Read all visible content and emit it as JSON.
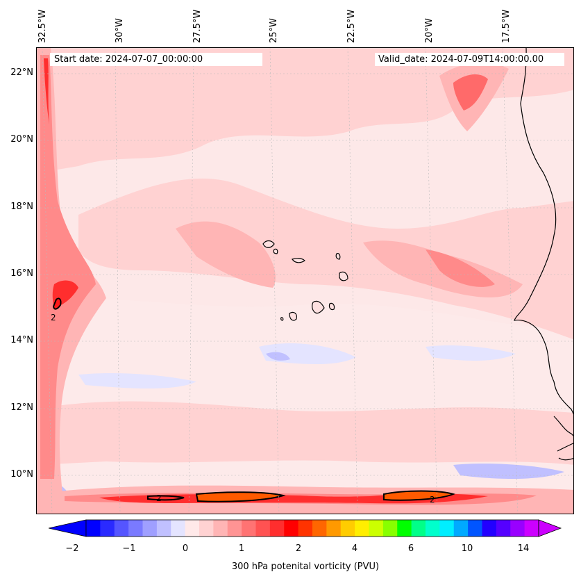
{
  "map": {
    "start_label": "Start date: 2024-07-07_00:00:00",
    "valid_label": "Valid_date: 2024-07-09T14:00:00.00",
    "latitude_labels": [
      "22°N",
      "20°N",
      "18°N",
      "16°N",
      "14°N",
      "12°N",
      "10°N"
    ],
    "longitude_labels": [
      "32.5°W",
      "30°W",
      "27.5°W",
      "25°W",
      "22.5°W",
      "20°W",
      "17.5°W"
    ],
    "contour_label": "2",
    "colorbar_label": "300 hPa potenital vorticity (PVU)",
    "colorbar_ticks": [
      "−2",
      "−1",
      "0",
      "1",
      "2",
      "4",
      "6",
      "10",
      "14"
    ],
    "colorbar_colors": [
      "#0000ff",
      "#2a2aff",
      "#5555ff",
      "#7a7aff",
      "#9f9fff",
      "#c0c0ff",
      "#e4e4ff",
      "#ffe9e9",
      "#ffd2d2",
      "#ffb5b5",
      "#ff9494",
      "#ff7373",
      "#ff5252",
      "#ff2e2e",
      "#ff0000",
      "#ff3300",
      "#ff6600",
      "#ff9900",
      "#ffcc00",
      "#ffee00",
      "#ccff00",
      "#88ff00",
      "#00ff00",
      "#00ff88",
      "#00ffcc",
      "#00eeff",
      "#00aaff",
      "#0055ff",
      "#2200ff",
      "#5500ff",
      "#9900ff",
      "#cc00ff"
    ],
    "colors": {
      "background": "#fde8e8",
      "light_pink": "#ffd2d2",
      "medium_pink": "#ffb5b5",
      "strong_pink": "#ff8a8a",
      "red": "#ff4040",
      "dark_red": "#ff1a1a",
      "light_blue": "#e4e4ff",
      "mid_blue": "#c0c0ff",
      "coastline": "#000000"
    }
  }
}
